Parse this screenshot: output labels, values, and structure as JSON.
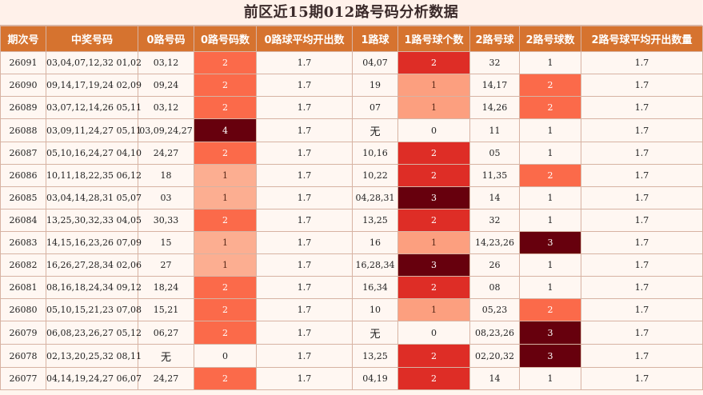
{
  "title": "前区近15期012路号码分析数据",
  "headers": [
    "期次号",
    "中奖号码",
    "0路号码",
    "0路号码数",
    "0路球平均开出数",
    "1路球",
    "1路号球个数",
    "2路号球",
    "2路号球数",
    "2路号球平均开出数量"
  ],
  "rows": [
    [
      "26091",
      "03,04,07,12,32 01,02",
      "03,12",
      "2",
      "1.7",
      "04,07",
      "2",
      "32",
      "1",
      "1.7"
    ],
    [
      "26090",
      "09,14,17,19,24 02,09",
      "09,24",
      "2",
      "1.7",
      "19",
      "1",
      "14,17",
      "2",
      "1.7"
    ],
    [
      "26089",
      "03,07,12,14,26 05,11",
      "03,12",
      "2",
      "1.7",
      "07",
      "1",
      "14,26",
      "2",
      "1.7"
    ],
    [
      "26088",
      "03,09,11,24,27 05,11",
      "03,09,24,27",
      "4",
      "1.7",
      "无",
      "0",
      "11",
      "1",
      "1.7"
    ],
    [
      "26087",
      "05,10,16,24,27 04,10",
      "24,27",
      "2",
      "1.7",
      "10,16",
      "2",
      "05",
      "1",
      "1.7"
    ],
    [
      "26086",
      "10,11,18,22,35 06,12",
      "18",
      "1",
      "1.7",
      "10,22",
      "2",
      "11,35",
      "2",
      "1.7"
    ],
    [
      "26085",
      "03,04,14,28,31 05,07",
      "03",
      "1",
      "1.7",
      "04,28,31",
      "3",
      "14",
      "1",
      "1.7"
    ],
    [
      "26084",
      "13,25,30,32,33 04,05",
      "30,33",
      "2",
      "1.7",
      "13,25",
      "2",
      "32",
      "1",
      "1.7"
    ],
    [
      "26083",
      "14,15,16,23,26 07,09",
      "15",
      "1",
      "1.7",
      "16",
      "1",
      "14,23,26",
      "3",
      "1.7"
    ],
    [
      "26082",
      "16,26,27,28,34 02,06",
      "27",
      "1",
      "1.7",
      "16,28,34",
      "3",
      "26",
      "1",
      "1.7"
    ],
    [
      "26081",
      "08,16,18,24,34 09,12",
      "18,24",
      "2",
      "1.7",
      "16,34",
      "2",
      "08",
      "1",
      "1.7"
    ],
    [
      "26080",
      "05,10,15,21,23 07,08",
      "15,21",
      "2",
      "1.7",
      "10",
      "1",
      "05,23",
      "2",
      "1.7"
    ],
    [
      "26079",
      "06,08,23,26,27 05,12",
      "06,27",
      "2",
      "1.7",
      "无",
      "0",
      "08,23,26",
      "3",
      "1.7"
    ],
    [
      "26078",
      "02,13,20,25,32 08,11",
      "无",
      "0",
      "1.7",
      "13,25",
      "2",
      "02,20,32",
      "3",
      "1.7"
    ],
    [
      "26077",
      "04,14,19,24,27 06,07",
      "24,27",
      "2",
      "1.7",
      "04,19",
      "2",
      "14",
      "1",
      "1.7"
    ]
  ],
  "colors": {
    "header_bg": "#d6732f",
    "count_0": "#fff7f2",
    "count_1": "#fcae91",
    "count_2": "#fb6a4a",
    "count_3_4": "#67000d",
    "count1_col_2": "#de2d26"
  }
}
